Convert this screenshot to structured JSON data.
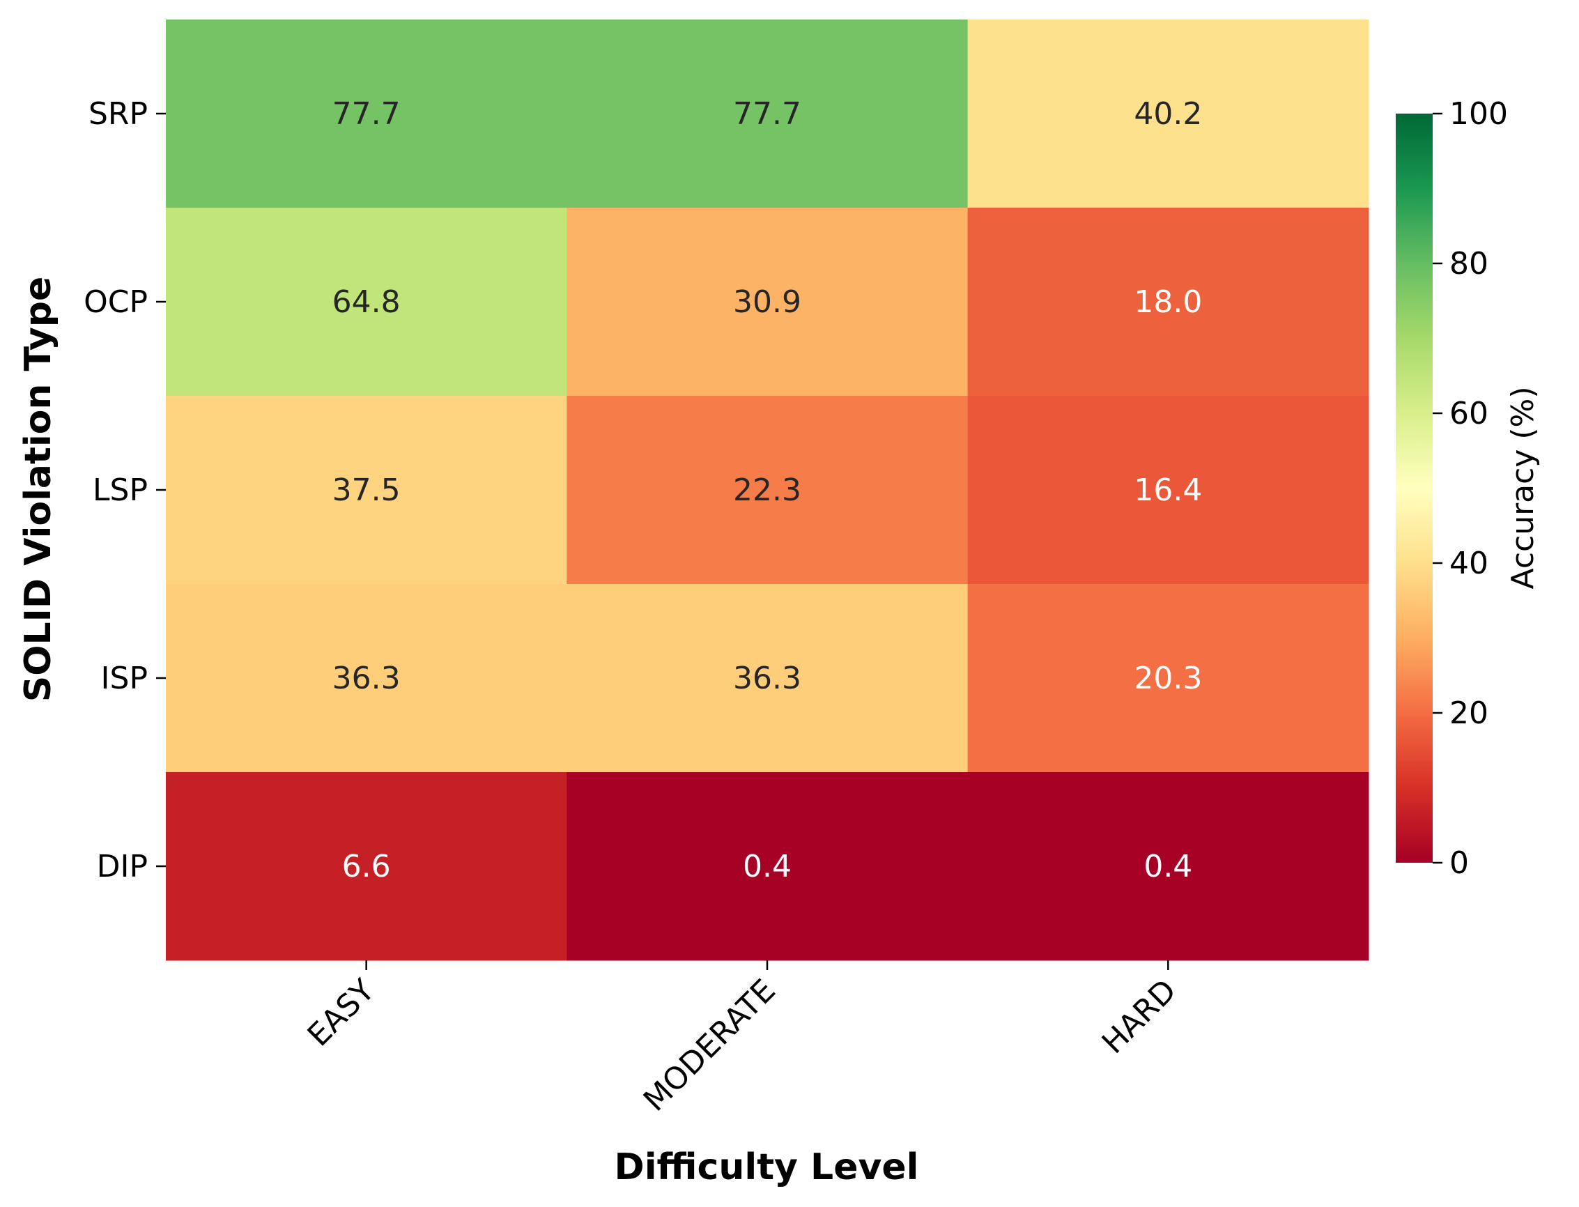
{
  "chart_data": {
    "type": "heatmap",
    "xlabel": "Difficulty Level",
    "ylabel": "SOLID Violation Type",
    "x_categories": [
      "EASY",
      "MODERATE",
      "HARD"
    ],
    "y_categories": [
      "SRP",
      "OCP",
      "LSP",
      "ISP",
      "DIP"
    ],
    "values": [
      [
        77.7,
        77.7,
        40.2
      ],
      [
        64.8,
        30.9,
        18.0
      ],
      [
        37.5,
        22.3,
        16.4
      ],
      [
        36.3,
        36.3,
        20.3
      ],
      [
        6.6,
        0.4,
        0.4
      ]
    ],
    "value_format": "0.0",
    "colormap": "RdYlGn",
    "colorbar": {
      "label": "Accuracy (%)",
      "range": [
        0,
        100
      ],
      "ticks": [
        0,
        20,
        40,
        60,
        80,
        100
      ],
      "placement": "right"
    },
    "annotation_colors": {
      "light": "#ffffff",
      "dark": "#262626"
    }
  }
}
